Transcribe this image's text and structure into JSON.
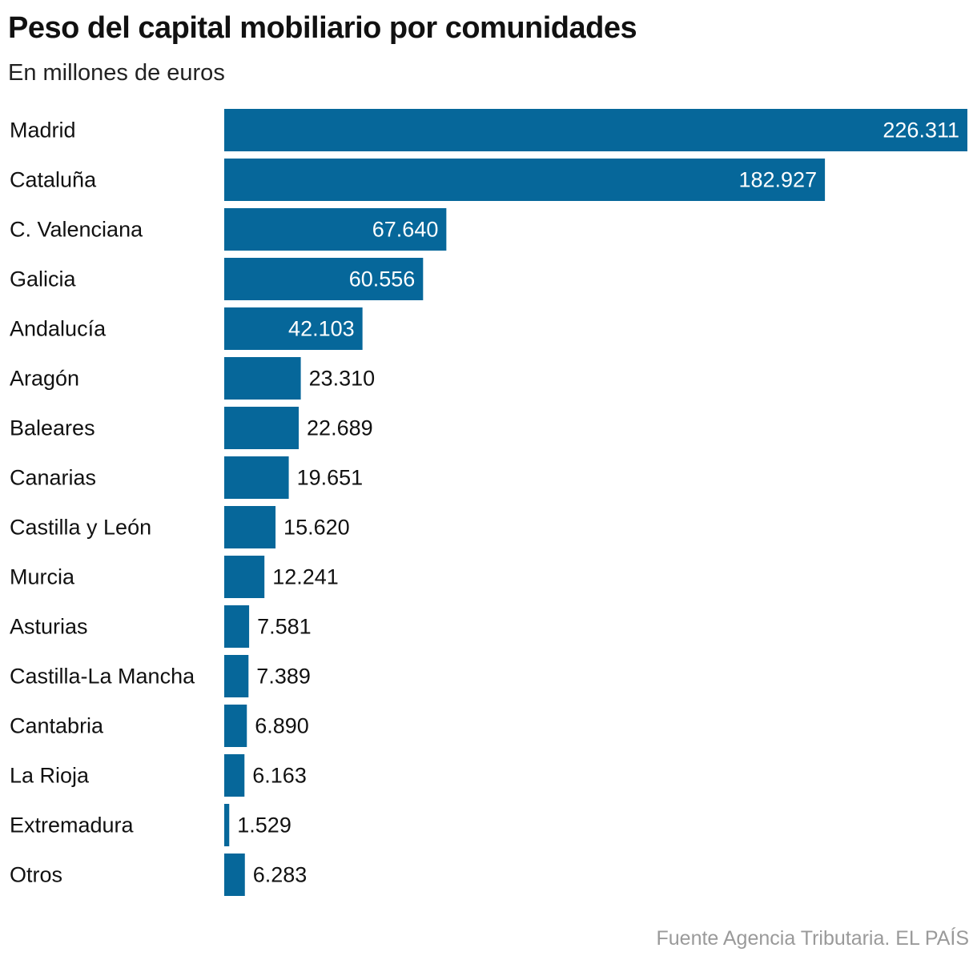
{
  "title": "Peso del capital mobiliario por comunidades",
  "subtitle": "En millones de euros",
  "source": "Fuente Agencia Tributaria. EL PAÍS",
  "colors": {
    "bar": "#06679a",
    "label_inside": "#ffffff",
    "label_outside": "#111111"
  },
  "chart_data": {
    "type": "bar",
    "orientation": "horizontal",
    "title": "Peso del capital mobiliario por comunidades",
    "subtitle": "En millones de euros",
    "xlabel": "",
    "ylabel": "",
    "grid": false,
    "legend": "none",
    "xlim": [
      0,
      226311
    ],
    "categories": [
      "Madrid",
      "Cataluña",
      "C. Valenciana",
      "Galicia",
      "Andalucía",
      "Aragón",
      "Baleares",
      "Canarias",
      "Castilla y León",
      "Murcia",
      "Asturias",
      "Castilla-La Mancha",
      "Cantabria",
      "La Rioja",
      "Extremadura",
      "Otros"
    ],
    "values": [
      226311,
      182927,
      67640,
      60556,
      42103,
      23310,
      22689,
      19651,
      15620,
      12241,
      7581,
      7389,
      6890,
      6163,
      1529,
      6283
    ],
    "value_labels": [
      "226.311",
      "182.927",
      "67.640",
      "60.556",
      "42.103",
      "23.310",
      "22.689",
      "19.651",
      "15.620",
      "12.241",
      "7.581",
      "7.389",
      "6.890",
      "6.163",
      "1.529",
      "6.283"
    ]
  }
}
